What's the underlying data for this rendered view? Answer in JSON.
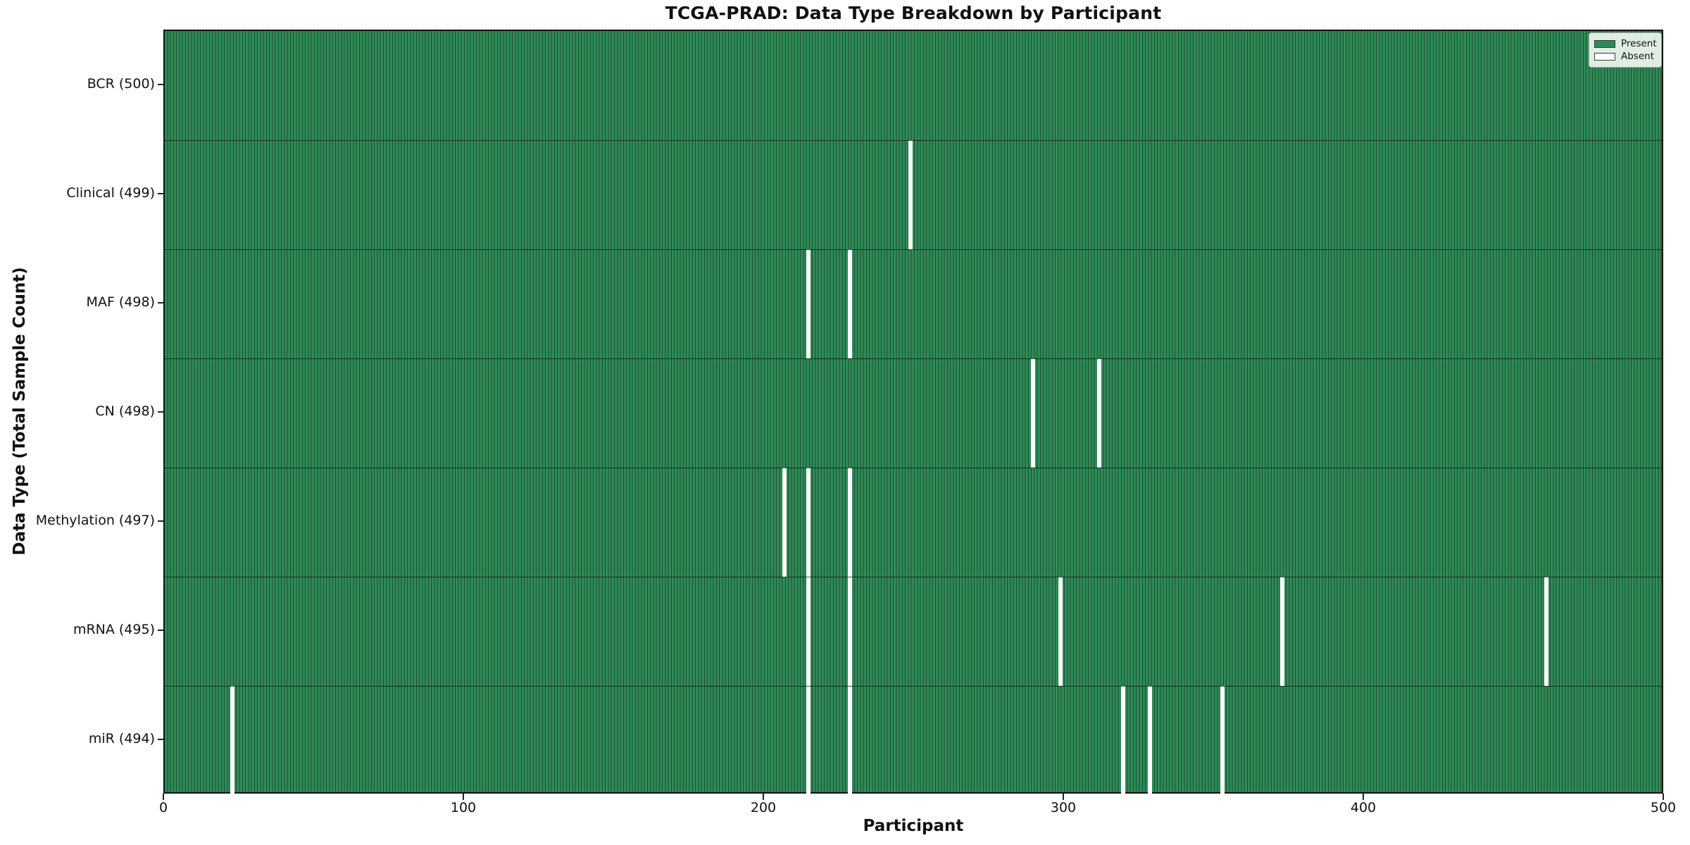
{
  "title": "TCGA-PRAD: Data Type Breakdown by Participant",
  "axes": {
    "xlabel": "Participant",
    "ylabel": "Data Type (Total Sample Count)",
    "x_ticks": [
      0,
      100,
      200,
      300,
      400,
      500
    ]
  },
  "legend": {
    "items": [
      {
        "label": "Present",
        "color": "#2e8b57"
      },
      {
        "label": "Absent",
        "color": "#ffffff"
      }
    ]
  },
  "chart_data": {
    "type": "heatmap",
    "title": "TCGA-PRAD: Data Type Breakdown by Participant",
    "xlabel": "Participant",
    "ylabel": "Data Type (Total Sample Count)",
    "x_range": [
      0,
      500
    ],
    "n_participants": 500,
    "grid": false,
    "legend_position": "upper right",
    "present_color": "#2e8b57",
    "present_edge_color": "#1d4f33",
    "absent_color": "#ffffff",
    "rows": [
      {
        "label": "BCR (500)",
        "data_type": "BCR",
        "present_count": 500,
        "absent_participants": []
      },
      {
        "label": "Clinical (499)",
        "data_type": "Clinical",
        "present_count": 499,
        "absent_participants": [
          248
        ]
      },
      {
        "label": "MAF (498)",
        "data_type": "MAF",
        "present_count": 498,
        "absent_participants": [
          214,
          228
        ]
      },
      {
        "label": "CN (498)",
        "data_type": "CN",
        "present_count": 498,
        "absent_participants": [
          289,
          311
        ]
      },
      {
        "label": "Methylation (497)",
        "data_type": "Methylation",
        "present_count": 497,
        "absent_participants": [
          206,
          214,
          228
        ]
      },
      {
        "label": "mRNA (495)",
        "data_type": "mRNA",
        "present_count": 495,
        "absent_participants": [
          214,
          228,
          298,
          372,
          460
        ]
      },
      {
        "label": "miR (494)",
        "data_type": "miR",
        "present_count": 494,
        "absent_participants": [
          22,
          214,
          228,
          319,
          328,
          352
        ]
      }
    ]
  }
}
